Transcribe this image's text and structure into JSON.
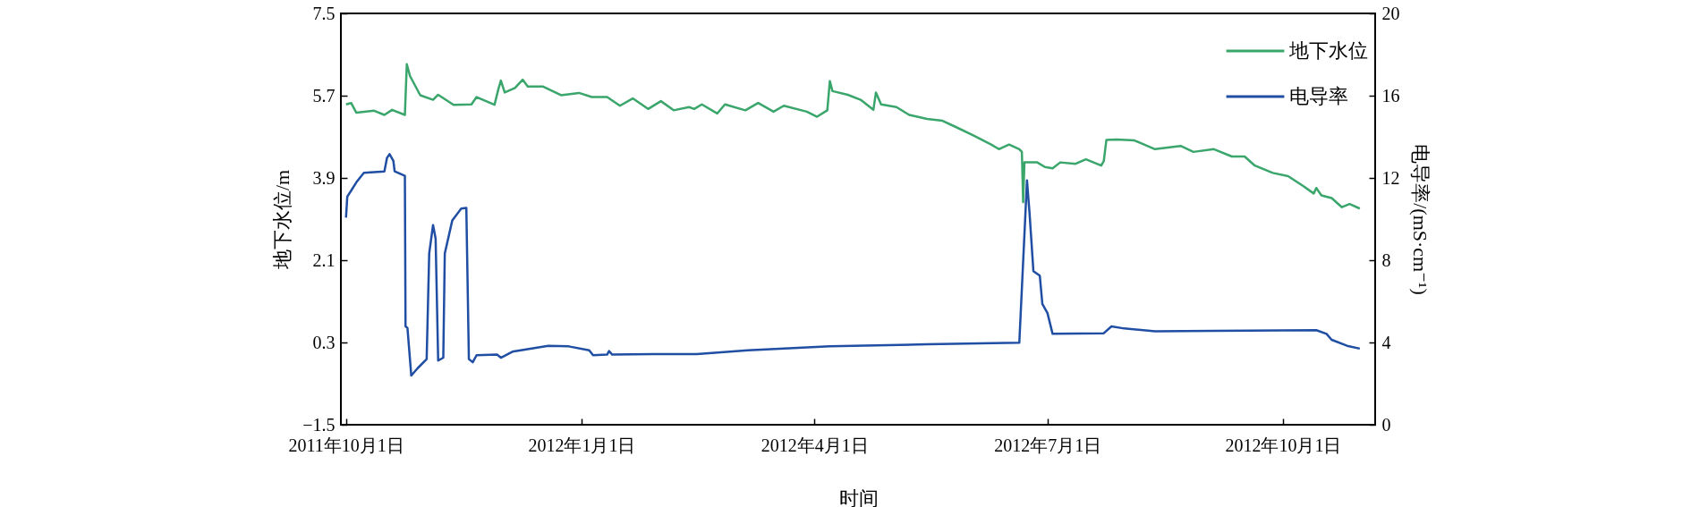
{
  "chart_data": {
    "type": "line",
    "xlabel": "时间",
    "ylabel": "地下水位/m",
    "y2label": "电导率/(mS·cm⁻¹)",
    "xlim": [
      "2011-09-29",
      "2012-11-06"
    ],
    "xticks": [
      {
        "value": "2011-10-01",
        "label": "2011年10月1日"
      },
      {
        "value": "2012-01-01",
        "label": "2012年1月1日"
      },
      {
        "value": "2012-04-01",
        "label": "2012年4月1日"
      },
      {
        "value": "2012-07-01",
        "label": "2012年7月1日"
      },
      {
        "value": "2012-10-01",
        "label": "2012年10月1日"
      }
    ],
    "ylim": [
      -1.5,
      7.5
    ],
    "yticks": [
      {
        "value": -1.5,
        "label": "−1.5"
      },
      0.3,
      2.1,
      3.9,
      5.7,
      7.5
    ],
    "y2lim": [
      0,
      20
    ],
    "y2ticks": [
      0,
      4,
      8,
      12,
      16,
      20
    ],
    "legend": "top right",
    "series": [
      {
        "name": "地下水位",
        "color": "#3aa66b",
        "x": [
          "2011-10-01",
          "2011-10-03",
          "2011-10-05",
          "2011-10-12",
          "2011-10-16",
          "2011-10-19",
          "2011-10-24",
          "2011-10-24T18:00",
          "2011-10-26",
          "2011-10-30",
          "2011-11-04",
          "2011-11-06",
          "2011-11-12",
          "2011-11-19",
          "2011-11-21",
          "2011-11-28",
          "2011-11-29T12:00",
          "2011-11-30T12:00",
          "2011-12-02",
          "2011-12-06",
          "2011-12-09",
          "2011-12-11",
          "2011-12-17",
          "2011-12-24",
          "2011-12-31",
          "2012-01-05",
          "2012-01-11",
          "2012-01-16",
          "2012-01-21",
          "2012-01-27",
          "2012-02-01",
          "2012-02-06",
          "2012-02-12",
          "2012-02-14",
          "2012-02-17",
          "2012-02-23",
          "2012-02-26",
          "2012-03-05",
          "2012-03-10",
          "2012-03-16",
          "2012-03-20",
          "2012-03-29",
          "2012-04-02",
          "2012-04-06",
          "2012-04-07",
          "2012-04-08",
          "2012-04-14",
          "2012-04-19",
          "2012-04-24",
          "2012-04-25",
          "2012-04-27",
          "2012-05-03",
          "2012-05-08",
          "2012-05-15",
          "2012-05-21",
          "2012-05-26",
          "2012-06-02",
          "2012-06-09",
          "2012-06-12",
          "2012-06-16",
          "2012-06-20",
          "2012-06-21",
          "2012-06-21T12:00",
          "2012-06-22",
          "2012-06-27",
          "2012-06-30",
          "2012-07-03",
          "2012-07-06",
          "2012-07-12",
          "2012-07-16",
          "2012-07-22",
          "2012-07-23",
          "2012-07-24",
          "2012-07-28",
          "2012-08-04",
          "2012-08-12",
          "2012-08-22",
          "2012-08-27",
          "2012-09-04",
          "2012-09-11",
          "2012-09-16",
          "2012-09-20",
          "2012-09-27",
          "2012-10-03",
          "2012-10-09",
          "2012-10-13",
          "2012-10-14",
          "2012-10-16",
          "2012-10-20",
          "2012-10-24",
          "2012-10-27",
          "2012-10-31"
        ],
        "values": [
          5.51,
          5.54,
          5.33,
          5.37,
          5.28,
          5.39,
          5.28,
          6.39,
          6.13,
          5.71,
          5.61,
          5.72,
          5.5,
          5.51,
          5.67,
          5.5,
          5.84,
          6.03,
          5.77,
          5.87,
          6.05,
          5.9,
          5.9,
          5.71,
          5.76,
          5.67,
          5.67,
          5.48,
          5.64,
          5.41,
          5.58,
          5.38,
          5.45,
          5.41,
          5.51,
          5.31,
          5.51,
          5.38,
          5.54,
          5.35,
          5.48,
          5.35,
          5.24,
          5.38,
          6.02,
          5.8,
          5.72,
          5.61,
          5.39,
          5.77,
          5.51,
          5.45,
          5.28,
          5.19,
          5.15,
          5.02,
          4.83,
          4.63,
          4.53,
          4.63,
          4.53,
          4.47,
          3.37,
          4.24,
          4.24,
          4.14,
          4.11,
          4.24,
          4.21,
          4.31,
          4.17,
          4.27,
          4.73,
          4.74,
          4.72,
          4.53,
          4.6,
          4.47,
          4.53,
          4.37,
          4.37,
          4.17,
          4.01,
          3.94,
          3.72,
          3.56,
          3.68,
          3.52,
          3.46,
          3.26,
          3.33,
          3.23
        ]
      },
      {
        "name": "电导率",
        "color": "#1f4ea3",
        "axis": "y2",
        "x": [
          "2011-10-01",
          "2011-10-01T12:00",
          "2011-10-03",
          "2011-10-05",
          "2011-10-07",
          "2011-10-08",
          "2011-10-16",
          "2011-10-17",
          "2011-10-18",
          "2011-10-19T12:00",
          "2011-10-20",
          "2011-10-24",
          "2011-10-24T06:00",
          "2011-10-25",
          "2011-10-26T12:00",
          "2011-10-29",
          "2011-11-01T12:00",
          "2011-11-02T12:00",
          "2011-11-04",
          "2011-11-05",
          "2011-11-06",
          "2011-11-08",
          "2011-11-08T14:00",
          "2011-11-11T12:00",
          "2011-11-15",
          "2011-11-17",
          "2011-11-18",
          "2011-11-19T12:00",
          "2011-11-21",
          "2011-11-29",
          "2011-11-30T12:00",
          "2011-12-05",
          "2011-12-19",
          "2011-12-27",
          "2012-01-04",
          "2012-01-05T12:00",
          "2012-01-11",
          "2012-01-11T18:00",
          "2012-01-13",
          "2012-01-29",
          "2012-02-15",
          "2012-03-06",
          "2012-04-07",
          "2012-05-15",
          "2012-06-20",
          "2012-06-23",
          "2012-06-24",
          "2012-06-25T12:00",
          "2012-06-28",
          "2012-06-29",
          "2012-07-01",
          "2012-07-03",
          "2012-07-23",
          "2012-07-26",
          "2012-07-31",
          "2012-08-12",
          "2012-09-04",
          "2012-10-14",
          "2012-10-18",
          "2012-10-20",
          "2012-10-26",
          "2012-10-31"
        ],
        "values": [
          10.07,
          11.09,
          11.38,
          11.78,
          12.1,
          12.25,
          12.32,
          12.97,
          13.16,
          12.83,
          12.32,
          12.1,
          4.78,
          4.71,
          2.39,
          2.75,
          3.19,
          8.33,
          9.71,
          9.06,
          3.12,
          3.26,
          8.33,
          9.93,
          10.51,
          10.54,
          3.19,
          3.04,
          3.38,
          3.41,
          3.26,
          3.55,
          3.84,
          3.81,
          3.62,
          3.38,
          3.41,
          3.58,
          3.41,
          3.43,
          3.43,
          3.62,
          3.81,
          3.91,
          3.99,
          11.88,
          10.29,
          7.47,
          7.25,
          5.87,
          5.43,
          4.42,
          4.45,
          4.78,
          4.68,
          4.54,
          4.57,
          4.6,
          4.42,
          4.13,
          3.84,
          3.7
        ]
      }
    ]
  }
}
